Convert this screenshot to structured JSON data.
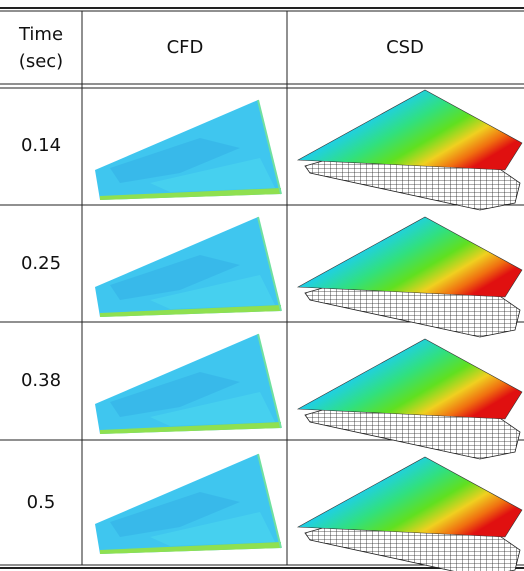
{
  "header": {
    "time": [
      "Time",
      "(sec)"
    ],
    "cfd": "CFD",
    "csd": "CSD"
  },
  "rows": [
    "0.14",
    "0.25",
    "0.38",
    "0.5"
  ]
}
